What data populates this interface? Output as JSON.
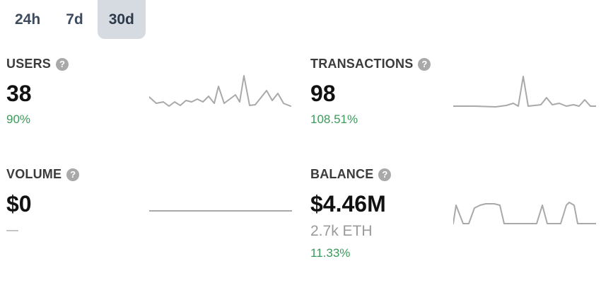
{
  "tabs": [
    {
      "label": "24h",
      "active": false
    },
    {
      "label": "7d",
      "active": false
    },
    {
      "label": "30d",
      "active": true
    }
  ],
  "stats": {
    "users": {
      "label": "USERS",
      "value": "38",
      "change": "90%",
      "help_icon": "question-circle-icon"
    },
    "transactions": {
      "label": "TRANSACTIONS",
      "value": "98",
      "change": "108.51%",
      "help_icon": "question-circle-icon"
    },
    "volume": {
      "label": "VOLUME",
      "value": "$0",
      "change": "—",
      "help_icon": "question-circle-icon"
    },
    "balance": {
      "label": "BALANCE",
      "value": "$4.46M",
      "sub": "2.7k ETH",
      "change": "11.33%",
      "help_icon": "question-circle-icon"
    }
  },
  "colors": {
    "positive": "#3a9a5b",
    "sparkline": "#a9a9a9",
    "active_tab_bg": "#d6dbe2"
  }
}
